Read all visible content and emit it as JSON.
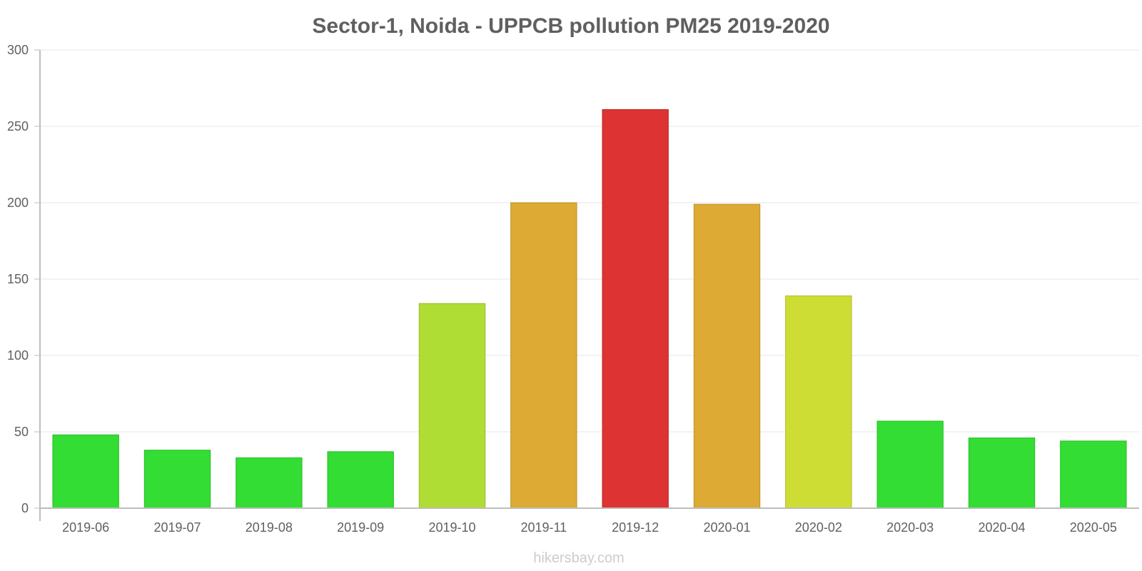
{
  "chart_data": {
    "type": "bar",
    "title": "Sector-1, Noida - UPPCB pollution PM25 2019-2020",
    "xlabel": "",
    "ylabel": "",
    "ylim": [
      0,
      300
    ],
    "yticks": [
      0,
      50,
      100,
      150,
      200,
      250,
      300
    ],
    "grid": true,
    "legend": "none",
    "categories": [
      "2019-06",
      "2019-07",
      "2019-08",
      "2019-09",
      "2019-10",
      "2019-11",
      "2019-12",
      "2020-01",
      "2020-02",
      "2020-03",
      "2020-04",
      "2020-05"
    ],
    "values": [
      48,
      38,
      33,
      37,
      134,
      200,
      261,
      199,
      139,
      57,
      46,
      44
    ],
    "colors": [
      "#33dd33",
      "#33dd33",
      "#33dd33",
      "#33dd33",
      "#afdd33",
      "#ddaa33",
      "#dd3333",
      "#ddaa33",
      "#cddd33",
      "#33dd33",
      "#33dd33",
      "#33dd33"
    ],
    "border_colors": [
      "#2bbd2b",
      "#2bbd2b",
      "#2bbd2b",
      "#2bbd2b",
      "#95bd2b",
      "#bd912b",
      "#bd2b2b",
      "#bd912b",
      "#afbd2b",
      "#2bbd2b",
      "#2bbd2b",
      "#2bbd2b"
    ]
  },
  "watermark": "hikersbay.com"
}
